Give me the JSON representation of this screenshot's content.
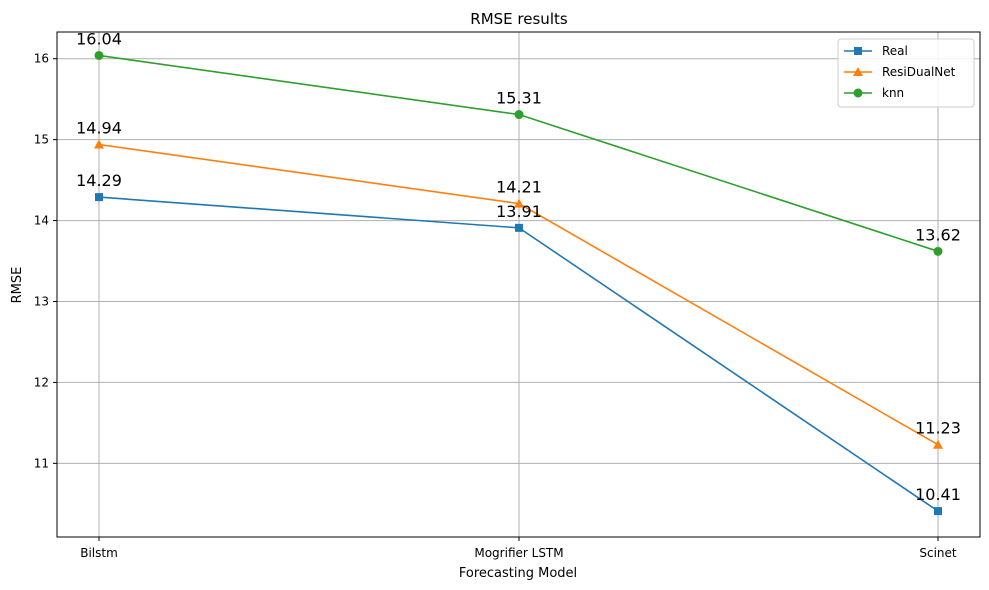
{
  "chart_data": {
    "type": "line",
    "title": "RMSE results",
    "xlabel": "Forecasting Model",
    "ylabel": "RMSE",
    "categories": [
      "Bilstm",
      "Mogrifier LSTM",
      "Scinet"
    ],
    "ylim": [
      10.09,
      16.33
    ],
    "yticks": [
      11,
      12,
      13,
      14,
      15,
      16
    ],
    "grid": true,
    "legend_position": "top-right",
    "series": [
      {
        "name": "Real",
        "values": [
          14.29,
          13.91,
          10.41
        ],
        "labels": [
          "14.29",
          "13.91",
          "10.41"
        ],
        "color": "#1f77b4",
        "marker": "square"
      },
      {
        "name": "ResiDualNet",
        "values": [
          14.94,
          14.21,
          11.23
        ],
        "labels": [
          "14.94",
          "14.21",
          "11.23"
        ],
        "color": "#ff7f0e",
        "marker": "triangle"
      },
      {
        "name": "knn",
        "values": [
          16.04,
          15.31,
          13.62
        ],
        "labels": [
          "16.04",
          "15.31",
          "13.62"
        ],
        "color": "#2ca02c",
        "marker": "circle"
      }
    ]
  }
}
